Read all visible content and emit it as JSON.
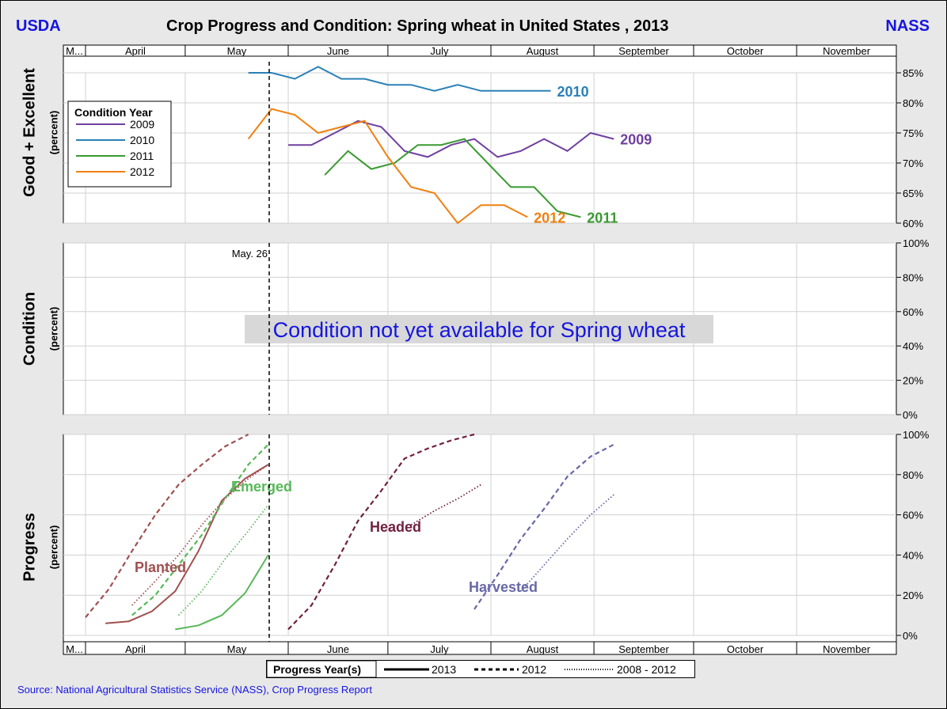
{
  "header": {
    "left": "USDA",
    "title": "Crop Progress and Condition: Spring wheat in United States , 2013",
    "right": "NASS"
  },
  "source": "Source: National Agricultural Statistics Service (NASS), Crop Progress Report",
  "months": [
    "M...",
    "April",
    "May",
    "June",
    "July",
    "August",
    "September",
    "October",
    "November"
  ],
  "panel1": {
    "ylabel": "Good + Excellent",
    "unit": "(percent)",
    "ticks": [
      "85%",
      "80%",
      "75%",
      "70%",
      "65%",
      "60%"
    ],
    "legend_title": "Condition Year",
    "legend": [
      "2009",
      "2010",
      "2011",
      "2012"
    ]
  },
  "panel2": {
    "ylabel": "Condition",
    "unit": "(percent)",
    "ticks": [
      "100%",
      "80%",
      "60%",
      "40%",
      "20%",
      "0%"
    ],
    "marker_label": "May. 26",
    "notice": "Condition not yet available for Spring wheat"
  },
  "panel3": {
    "ylabel": "Progress",
    "unit": "(percent)",
    "ticks": [
      "100%",
      "80%",
      "60%",
      "40%",
      "20%",
      "0%"
    ],
    "labels": {
      "planted": "Planted",
      "emerged": "Emerged",
      "headed": "Headed",
      "harvested": "Harvested"
    }
  },
  "progress_legend": {
    "title": "Progress Year(s)",
    "items": [
      "2013",
      "2012",
      "2008 - 2012"
    ]
  },
  "colors": {
    "2009": "#7040a0",
    "2010": "#2a80b8",
    "2011": "#3a9a30",
    "2012": "#f08010",
    "planted": "#a05050",
    "emerged": "#58b858",
    "headed": "#702040",
    "harvested": "#6868a8",
    "accent": "#1515e0"
  },
  "chart_data": [
    {
      "type": "line",
      "title": "Good + Excellent",
      "ylabel": "Good + Excellent (percent)",
      "ylim": [
        60,
        87
      ],
      "series": [
        {
          "name": "2009",
          "label_end": "2009",
          "x": [
            "2009-06-01",
            "2009-06-08",
            "2009-06-15",
            "2009-06-22",
            "2009-06-29",
            "2009-07-06",
            "2009-07-13",
            "2009-07-20",
            "2009-07-27",
            "2009-08-03",
            "2009-08-10",
            "2009-08-17",
            "2009-08-24",
            "2009-08-31",
            "2009-09-07"
          ],
          "values": [
            73,
            73,
            75,
            77,
            76,
            72,
            71,
            73,
            74,
            71,
            72,
            74,
            72,
            75,
            74
          ]
        },
        {
          "name": "2010",
          "label_end": "2010",
          "x": [
            "2010-05-20",
            "2010-05-27",
            "2010-06-03",
            "2010-06-10",
            "2010-06-17",
            "2010-06-24",
            "2010-07-01",
            "2010-07-08",
            "2010-07-15",
            "2010-07-22",
            "2010-07-29",
            "2010-08-05",
            "2010-08-12",
            "2010-08-19"
          ],
          "values": [
            85,
            85,
            84,
            86,
            84,
            84,
            83,
            83,
            82,
            83,
            82,
            82,
            82,
            82
          ]
        },
        {
          "name": "2011",
          "label_end": "2011",
          "x": [
            "2011-06-12",
            "2011-06-19",
            "2011-06-26",
            "2011-07-03",
            "2011-07-10",
            "2011-07-17",
            "2011-07-24",
            "2011-07-31",
            "2011-08-07",
            "2011-08-14",
            "2011-08-21",
            "2011-08-28"
          ],
          "values": [
            68,
            72,
            69,
            70,
            73,
            73,
            74,
            70,
            66,
            66,
            62,
            61
          ]
        },
        {
          "name": "2012",
          "label_end": "2012",
          "x": [
            "2012-05-20",
            "2012-05-27",
            "2012-06-03",
            "2012-06-10",
            "2012-06-17",
            "2012-06-24",
            "2012-07-01",
            "2012-07-08",
            "2012-07-15",
            "2012-07-22",
            "2012-07-29",
            "2012-08-05",
            "2012-08-12"
          ],
          "values": [
            74,
            79,
            78,
            75,
            76,
            77,
            71,
            66,
            65,
            60,
            63,
            63,
            61
          ]
        }
      ]
    },
    {
      "type": "line",
      "title": "Condition",
      "ylabel": "Condition (percent)",
      "ylim": [
        0,
        100
      ],
      "annotation": "Condition not yet available for Spring wheat",
      "marker": "May. 26",
      "series": []
    },
    {
      "type": "line",
      "title": "Progress",
      "ylabel": "Progress (percent)",
      "ylim": [
        0,
        100
      ],
      "series": [
        {
          "name": "Planted 2013",
          "style": "solid",
          "color": "#a05050",
          "x": [
            "04-07",
            "04-14",
            "04-21",
            "04-28",
            "05-05",
            "05-12",
            "05-19",
            "05-26"
          ],
          "values": [
            6,
            7,
            12,
            22,
            42,
            67,
            78,
            85
          ]
        },
        {
          "name": "Planted 2012",
          "style": "dashed",
          "color": "#a05050",
          "x": [
            "04-01",
            "04-08",
            "04-15",
            "04-22",
            "04-29",
            "05-06",
            "05-13",
            "05-20"
          ],
          "values": [
            9,
            23,
            42,
            60,
            75,
            85,
            94,
            100
          ]
        },
        {
          "name": "Planted 2008 - 2012",
          "style": "dotted",
          "color": "#a05050",
          "x": [
            "04-15",
            "04-22",
            "04-29",
            "05-06",
            "05-13",
            "05-20",
            "05-26"
          ],
          "values": [
            15,
            27,
            40,
            55,
            68,
            78,
            85
          ]
        },
        {
          "name": "Emerged 2013",
          "style": "solid",
          "color": "#58b858",
          "x": [
            "04-28",
            "05-05",
            "05-12",
            "05-19",
            "05-26"
          ],
          "values": [
            3,
            5,
            10,
            21,
            40
          ]
        },
        {
          "name": "Emerged 2012",
          "style": "dashed",
          "color": "#58b858",
          "x": [
            "04-15",
            "04-22",
            "04-29",
            "05-06",
            "05-13",
            "05-20",
            "05-26"
          ],
          "values": [
            10,
            20,
            35,
            50,
            68,
            85,
            95
          ]
        },
        {
          "name": "Emerged 2008 - 2012",
          "style": "dotted",
          "color": "#58b858",
          "x": [
            "04-29",
            "05-06",
            "05-13",
            "05-20",
            "05-26"
          ],
          "values": [
            10,
            22,
            38,
            52,
            65
          ]
        },
        {
          "name": "Headed 2012",
          "style": "dashed",
          "color": "#702040",
          "x": [
            "06-01",
            "06-08",
            "06-15",
            "06-22",
            "06-29",
            "07-06",
            "07-13",
            "07-20",
            "07-27"
          ],
          "values": [
            3,
            15,
            35,
            57,
            72,
            88,
            93,
            97,
            100
          ]
        },
        {
          "name": "Headed 2008 - 2012",
          "style": "dotted",
          "color": "#702040",
          "x": [
            "07-08",
            "07-15",
            "07-22",
            "07-29"
          ],
          "values": [
            55,
            62,
            68,
            75
          ]
        },
        {
          "name": "Harvested 2012",
          "style": "dashed",
          "color": "#6868a8",
          "x": [
            "07-27",
            "08-03",
            "08-10",
            "08-17",
            "08-24",
            "08-31",
            "09-07"
          ],
          "values": [
            13,
            30,
            48,
            63,
            79,
            89,
            95
          ]
        },
        {
          "name": "Harvested 2008 - 2012",
          "style": "dotted",
          "color": "#6868a8",
          "x": [
            "08-10",
            "08-17",
            "08-24",
            "08-31",
            "09-07"
          ],
          "values": [
            22,
            35,
            48,
            60,
            70
          ]
        }
      ]
    }
  ]
}
